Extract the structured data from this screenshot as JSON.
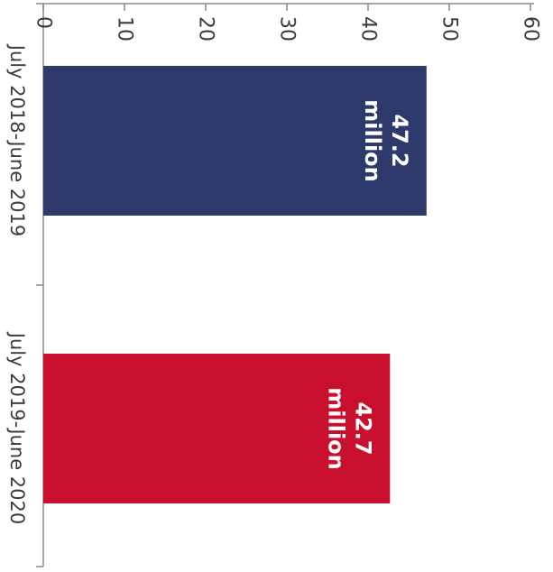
{
  "chart_data": {
    "type": "bar",
    "orientation": "rotated-90-clockwise",
    "categories": [
      "July 2018-June 2019",
      "July 2019-June 2020"
    ],
    "values": [
      47.2,
      42.7
    ],
    "data_labels": [
      [
        "47.2",
        "million"
      ],
      [
        "42.7",
        "million"
      ]
    ],
    "colors": [
      "#2d3a6b",
      "#c8102e"
    ],
    "title": "",
    "xlabel": "",
    "ylabel": "",
    "ylim": [
      0,
      60
    ],
    "yticks": [
      "0",
      "10",
      "20",
      "30",
      "40",
      "50",
      "60"
    ],
    "grid": false,
    "legend": "none"
  }
}
